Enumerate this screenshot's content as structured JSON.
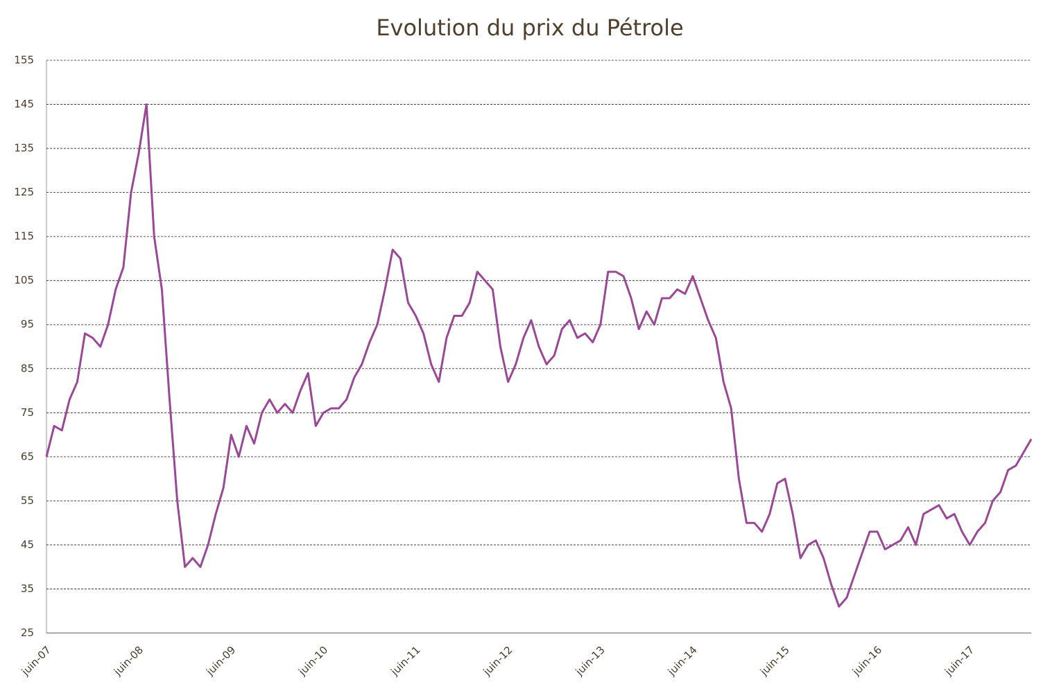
{
  "chart_data": {
    "type": "line",
    "title": "Evolution du prix du Pétrole",
    "categories": [
      "juin-07",
      null,
      null,
      null,
      null,
      null,
      null,
      null,
      null,
      null,
      null,
      null,
      "juin-08",
      null,
      null,
      null,
      null,
      null,
      null,
      null,
      null,
      null,
      null,
      null,
      "juin-09",
      null,
      null,
      null,
      null,
      null,
      null,
      null,
      null,
      null,
      null,
      null,
      "juin-10",
      null,
      null,
      null,
      null,
      null,
      null,
      null,
      null,
      null,
      null,
      null,
      "juin-11",
      null,
      null,
      null,
      null,
      null,
      null,
      null,
      null,
      null,
      null,
      null,
      "juin-12",
      null,
      null,
      null,
      null,
      null,
      null,
      null,
      null,
      null,
      null,
      null,
      "juin-13",
      null,
      null,
      null,
      null,
      null,
      null,
      null,
      null,
      null,
      null,
      null,
      "juin-14",
      null,
      null,
      null,
      null,
      null,
      null,
      null,
      null,
      null,
      null,
      null,
      "juin-15",
      null,
      null,
      null,
      null,
      null,
      null,
      null,
      null,
      null,
      null,
      null,
      "juin-16",
      null,
      null,
      null,
      null,
      null,
      null,
      null,
      null,
      null,
      null,
      null,
      "juin-17",
      null,
      null,
      null,
      null,
      null,
      null,
      null,
      null
    ],
    "series": [
      {
        "color": "#9b4797",
        "values": [
          65,
          72,
          71,
          78,
          82,
          93,
          92,
          90,
          95,
          103,
          108,
          125,
          134,
          145,
          115,
          103,
          78,
          55,
          40,
          42,
          40,
          45,
          52,
          58,
          70,
          65,
          72,
          68,
          75,
          78,
          75,
          77,
          75,
          80,
          84,
          72,
          75,
          76,
          76,
          78,
          83,
          86,
          91,
          95,
          103,
          112,
          110,
          100,
          97,
          93,
          86,
          82,
          92,
          97,
          97,
          100,
          107,
          105,
          103,
          90,
          82,
          86,
          92,
          96,
          90,
          86,
          88,
          94,
          96,
          92,
          93,
          91,
          95,
          107,
          107,
          106,
          101,
          94,
          98,
          95,
          101,
          101,
          103,
          102,
          106,
          101,
          96,
          92,
          82,
          76,
          60,
          50,
          50,
          48,
          52,
          59,
          60,
          52,
          42,
          45,
          46,
          42,
          36,
          31,
          33,
          38,
          43,
          48,
          48,
          44,
          45,
          46,
          49,
          45,
          52,
          53,
          54,
          51,
          52,
          48,
          45,
          48,
          50,
          55,
          57,
          62,
          63,
          66,
          69
        ]
      }
    ],
    "ylim": [
      25,
      155
    ],
    "yticks": [
      25,
      35,
      45,
      55,
      65,
      75,
      85,
      95,
      105,
      115,
      125,
      135,
      145,
      155
    ],
    "grid": true
  }
}
